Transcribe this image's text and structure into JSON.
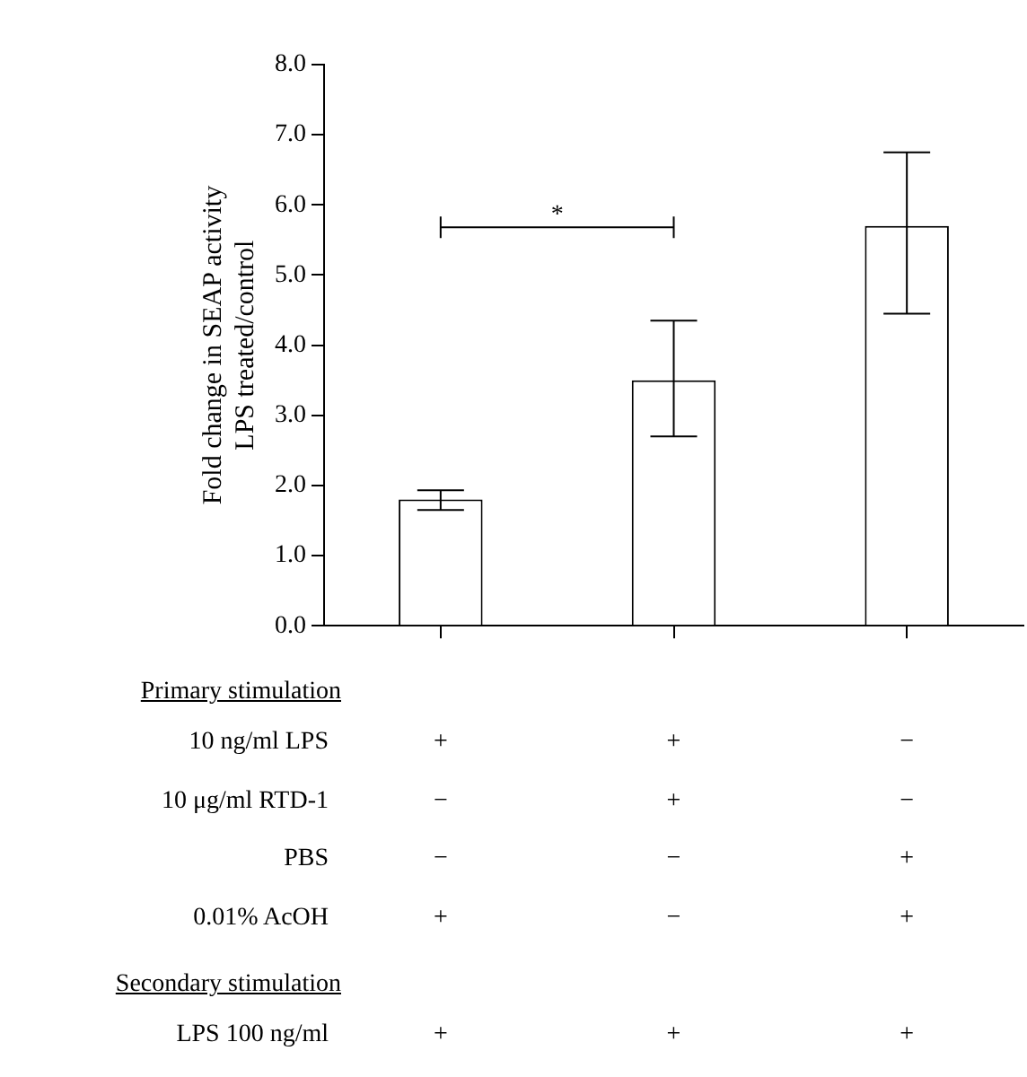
{
  "chart_data": {
    "type": "bar",
    "ylabel": "Fold change in SEAP activity\nLPS treated/control",
    "categories": [
      null,
      null,
      null
    ],
    "values": [
      1.8,
      3.5,
      5.7
    ],
    "errors": [
      [
        1.65,
        1.93
      ],
      [
        2.7,
        4.35
      ],
      [
        4.45,
        6.75
      ]
    ],
    "color": "#ffffff",
    "ylim": [
      0,
      8
    ],
    "yticks": [
      {
        "value": 0,
        "label": "0.0"
      },
      {
        "value": 1,
        "label": "1.0"
      },
      {
        "value": 2,
        "label": "2.0"
      },
      {
        "value": 3,
        "label": "3.0"
      },
      {
        "value": 4,
        "label": "4.0"
      },
      {
        "value": 5,
        "label": "5.0"
      },
      {
        "value": 6,
        "label": "6.0"
      },
      {
        "value": 7,
        "label": "7.0"
      },
      {
        "value": 8,
        "label": "8.0"
      }
    ],
    "grid": false,
    "legend": false,
    "tick_labels": "y",
    "annotations": [
      "*",
      "Primary stimulation",
      "10 ng/ml LPS",
      "+",
      "+",
      "−",
      "10 μg/ml RTD-1",
      "−",
      "+",
      "−",
      "PBS",
      "−",
      "−",
      "+",
      "0.01% AcOH",
      "+",
      "−",
      "+",
      "Secondary stimulation",
      "LPS 100 ng/ml",
      "+",
      "+",
      "+"
    ]
  }
}
